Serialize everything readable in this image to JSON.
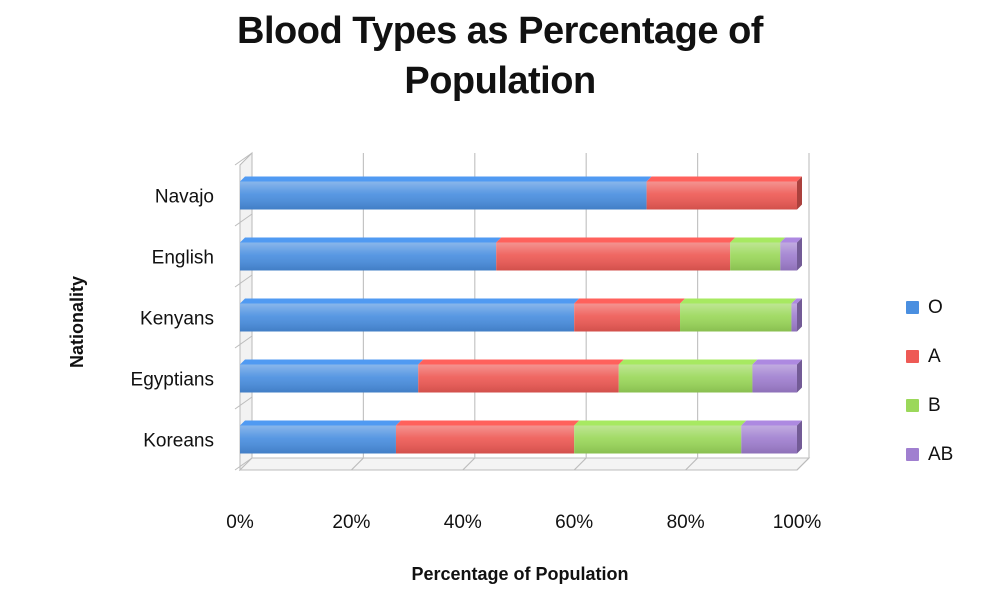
{
  "title_lines": [
    "Blood Types as Percentage of",
    "Population"
  ],
  "chart_data": {
    "type": "bar",
    "orientation": "horizontal",
    "stacking": "percent",
    "title": "Blood Types as Percentage of Population",
    "xlabel": "Percentage of Population",
    "ylabel": "Nationality",
    "xlim": [
      0,
      100
    ],
    "x_ticks": [
      "0%",
      "20%",
      "40%",
      "60%",
      "80%",
      "100%"
    ],
    "grid": true,
    "legend_position": "right",
    "categories": [
      "Navajo",
      "English",
      "Kenyans",
      "Egyptians",
      "Koreans"
    ],
    "series": [
      {
        "name": "O",
        "color": "#4a8fe0",
        "values": [
          73,
          46,
          60,
          32,
          28
        ]
      },
      {
        "name": "A",
        "color": "#ee5a55",
        "values": [
          27,
          42,
          19,
          36,
          32
        ]
      },
      {
        "name": "B",
        "color": "#9bd85a",
        "values": [
          0,
          9,
          20,
          24,
          30
        ]
      },
      {
        "name": "AB",
        "color": "#a07fd0",
        "values": [
          0,
          3,
          1,
          8,
          10
        ]
      }
    ]
  }
}
